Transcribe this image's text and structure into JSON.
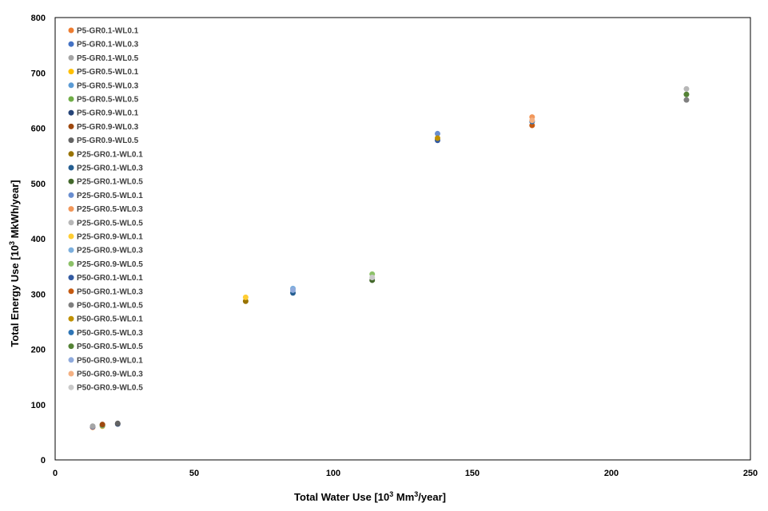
{
  "chart_data": {
    "type": "scatter",
    "title": "",
    "xlabel": {
      "prefix": "Total  Water Use [10",
      "sup": "3",
      "suffix": " Mm",
      "sup2": "3",
      "end": "/year]"
    },
    "ylabel": {
      "prefix": "Total Energy Use [10",
      "sup": "3",
      "suffix": " MkWh/year]"
    },
    "xlim": [
      0,
      250
    ],
    "ylim": [
      0,
      800
    ],
    "xticks": [
      "0",
      "50",
      "100",
      "150",
      "200",
      "250"
    ],
    "yticks": [
      "0",
      "100",
      "200",
      "300",
      "400",
      "500",
      "600",
      "700",
      "800"
    ],
    "grid": false,
    "legend_position": "top-left",
    "series": [
      {
        "name": "P5-GR0.1-WL0.1",
        "color": "#ED7D31",
        "points": [
          [
            13.5,
            59
          ]
        ]
      },
      {
        "name": "P5-GR0.1-WL0.3",
        "color": "#4472C4",
        "points": [
          [
            13.5,
            60
          ]
        ]
      },
      {
        "name": "P5-GR0.1-WL0.5",
        "color": "#A5A5A5",
        "points": [
          [
            13.5,
            61
          ]
        ]
      },
      {
        "name": "P5-GR0.5-WL0.1",
        "color": "#FFC000",
        "points": [
          [
            17,
            61
          ]
        ]
      },
      {
        "name": "P5-GR0.5-WL0.3",
        "color": "#5B9BD5",
        "points": [
          [
            17,
            62
          ]
        ]
      },
      {
        "name": "P5-GR0.5-WL0.5",
        "color": "#70AD47",
        "points": [
          [
            17,
            63
          ]
        ]
      },
      {
        "name": "P5-GR0.9-WL0.1",
        "color": "#264478",
        "points": [
          [
            22.5,
            65
          ]
        ]
      },
      {
        "name": "P5-GR0.9-WL0.3",
        "color": "#9E480E",
        "points": [
          [
            17,
            64
          ]
        ]
      },
      {
        "name": "P5-GR0.9-WL0.5",
        "color": "#636363",
        "points": [
          [
            22.5,
            66
          ]
        ]
      },
      {
        "name": "P25-GR0.1-WL0.1",
        "color": "#997300",
        "points": [
          [
            68.5,
            287
          ]
        ]
      },
      {
        "name": "P25-GR0.1-WL0.3",
        "color": "#255E91",
        "points": [
          [
            85.5,
            302
          ]
        ]
      },
      {
        "name": "P25-GR0.1-WL0.5",
        "color": "#43682B",
        "points": [
          [
            114,
            325
          ]
        ]
      },
      {
        "name": "P25-GR0.5-WL0.1",
        "color": "#698ED0",
        "points": [
          [
            137.5,
            590
          ]
        ]
      },
      {
        "name": "P25-GR0.5-WL0.3",
        "color": "#F1975A",
        "points": [
          [
            171.5,
            620
          ]
        ]
      },
      {
        "name": "P25-GR0.5-WL0.5",
        "color": "#B7B7B7",
        "points": [
          [
            227,
            671
          ]
        ]
      },
      {
        "name": "P25-GR0.9-WL0.1",
        "color": "#FFCD33",
        "points": [
          [
            68.5,
            294
          ]
        ]
      },
      {
        "name": "P25-GR0.9-WL0.3",
        "color": "#7CAFDD",
        "points": [
          [
            85.5,
            310
          ]
        ]
      },
      {
        "name": "P25-GR0.9-WL0.5",
        "color": "#8CC168",
        "points": [
          [
            114,
            336
          ]
        ]
      },
      {
        "name": "P50-GR0.1-WL0.1",
        "color": "#335AA1",
        "points": [
          [
            137.5,
            578
          ]
        ]
      },
      {
        "name": "P50-GR0.1-WL0.3",
        "color": "#C55A11",
        "points": [
          [
            171.5,
            605
          ]
        ]
      },
      {
        "name": "P50-GR0.1-WL0.5",
        "color": "#7F7F7F",
        "points": [
          [
            227,
            651
          ]
        ]
      },
      {
        "name": "P50-GR0.5-WL0.1",
        "color": "#BF9000",
        "points": [
          [
            137.5,
            582
          ]
        ]
      },
      {
        "name": "P50-GR0.5-WL0.3",
        "color": "#2E75B6",
        "points": [
          [
            171.5,
            612
          ]
        ]
      },
      {
        "name": "P50-GR0.5-WL0.5",
        "color": "#548235",
        "points": [
          [
            227,
            661
          ]
        ]
      },
      {
        "name": "P50-GR0.9-WL0.1",
        "color": "#8FAADC",
        "points": [
          [
            85.5,
            307
          ]
        ]
      },
      {
        "name": "P50-GR0.9-WL0.3",
        "color": "#F4B183",
        "points": [
          [
            171.5,
            614
          ]
        ]
      },
      {
        "name": "P50-GR0.9-WL0.5",
        "color": "#C9C9C9",
        "points": [
          [
            114,
            330
          ]
        ]
      }
    ]
  }
}
